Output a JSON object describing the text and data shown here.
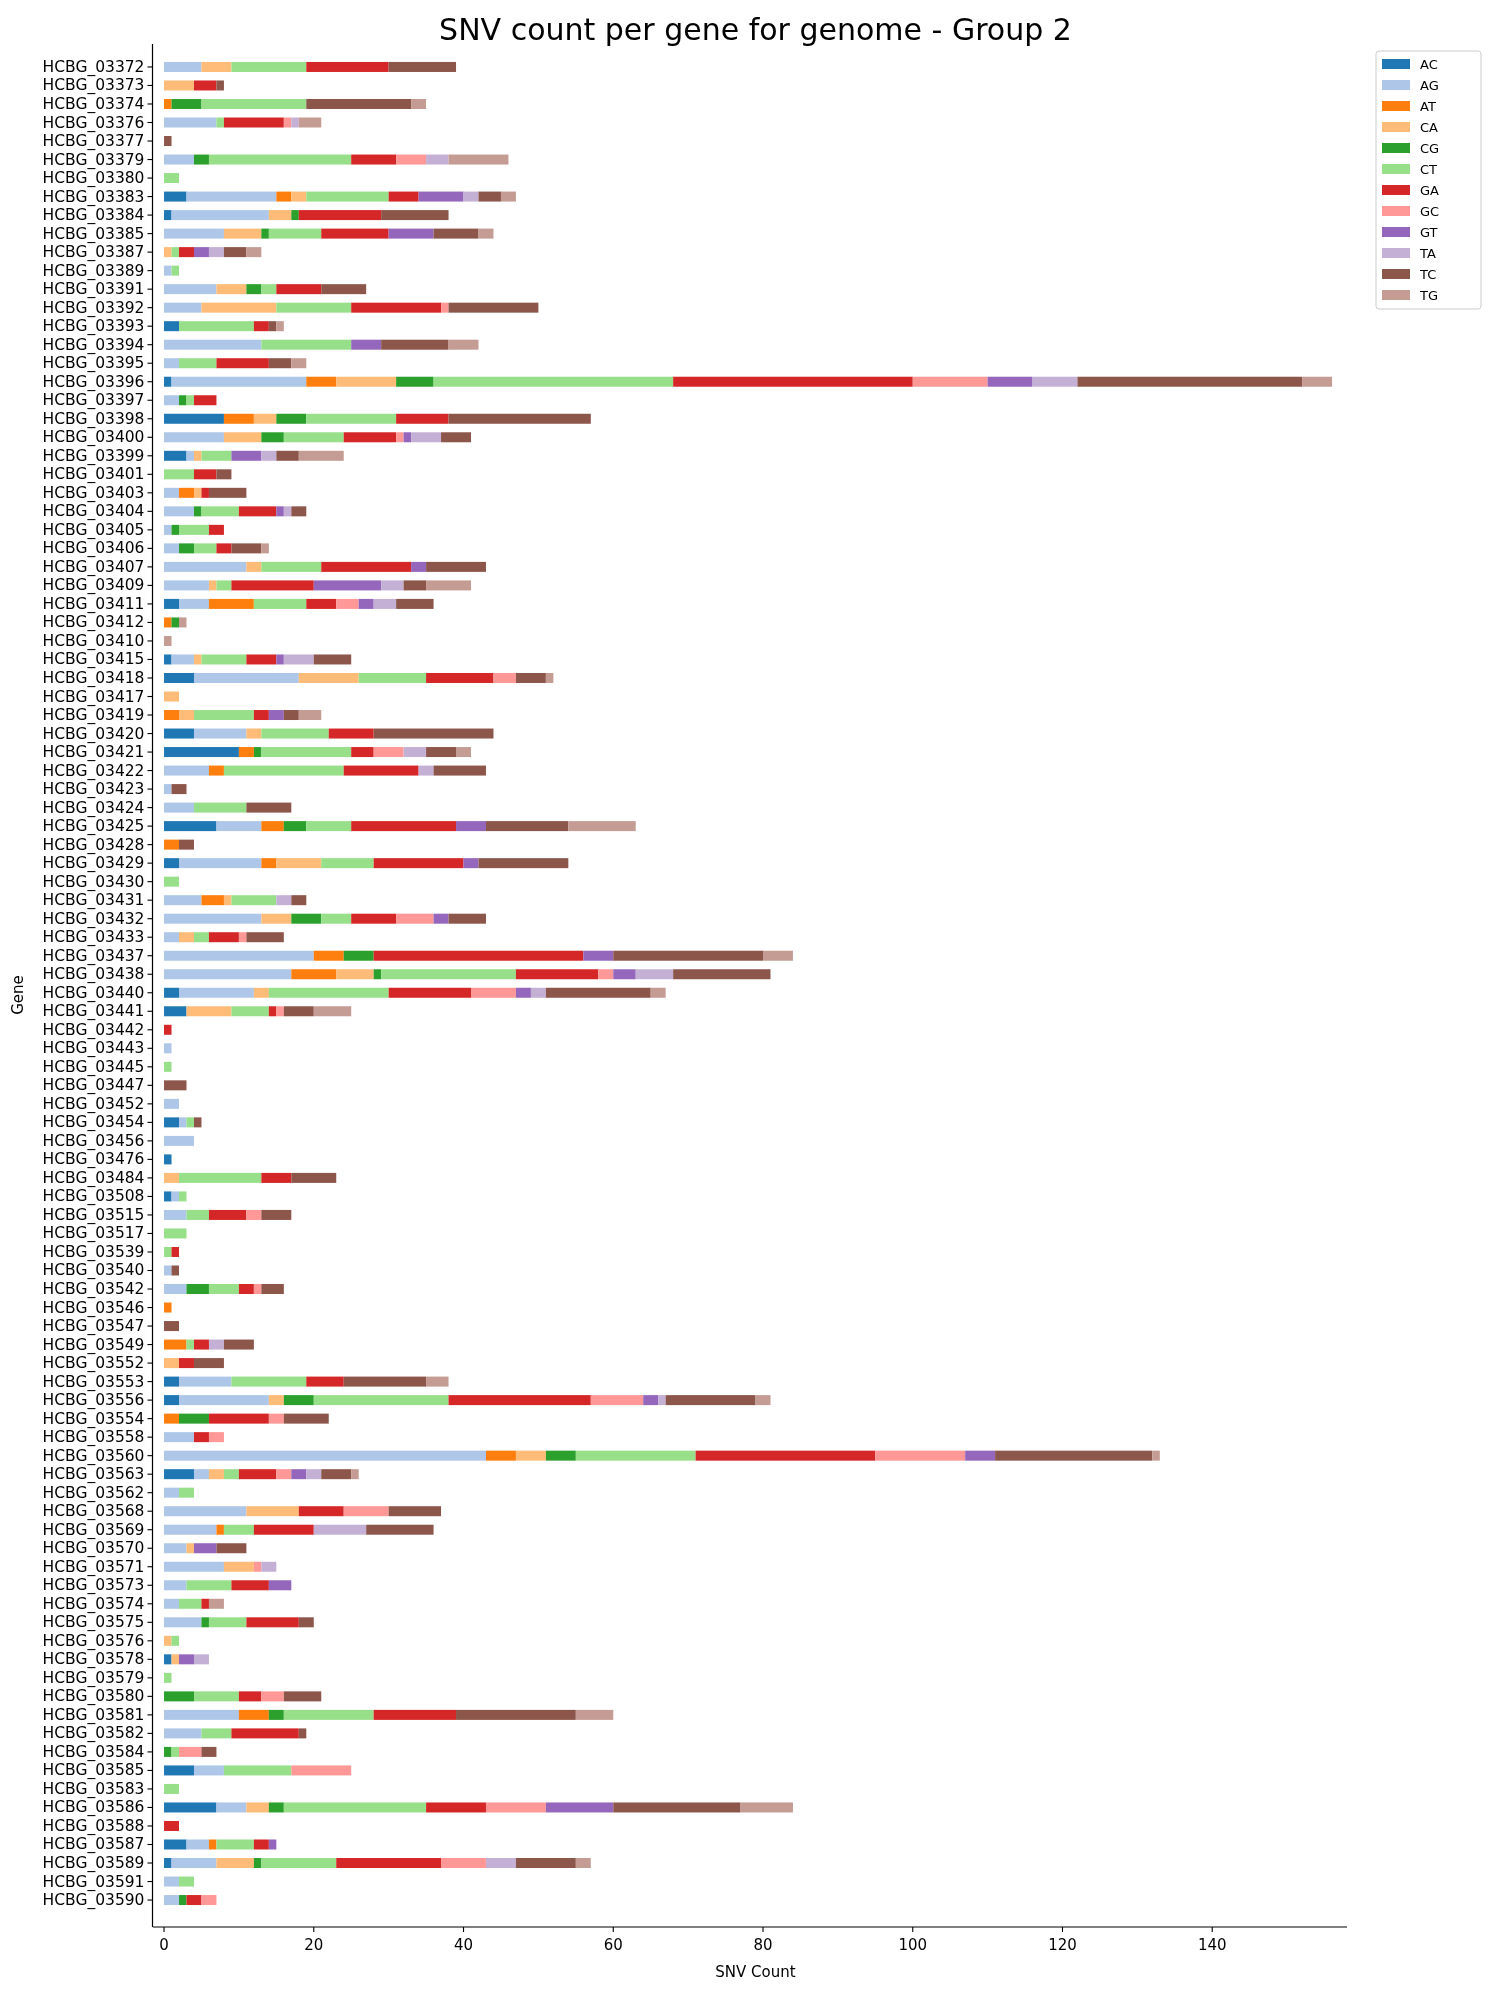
{
  "chart_data": {
    "type": "bar",
    "orientation": "horizontal",
    "stacked": true,
    "title": "SNV count per gene for genome - Group 2",
    "xlabel": "SNV Count",
    "ylabel": "Gene",
    "legend": "top right",
    "xlim": [
      -1.5,
      158
    ],
    "xticks": [
      0,
      20,
      40,
      60,
      80,
      100,
      120,
      140
    ],
    "categories": [
      "HCBG_03372",
      "HCBG_03373",
      "HCBG_03374",
      "HCBG_03376",
      "HCBG_03377",
      "HCBG_03379",
      "HCBG_03380",
      "HCBG_03383",
      "HCBG_03384",
      "HCBG_03385",
      "HCBG_03387",
      "HCBG_03389",
      "HCBG_03391",
      "HCBG_03392",
      "HCBG_03393",
      "HCBG_03394",
      "HCBG_03395",
      "HCBG_03396",
      "HCBG_03397",
      "HCBG_03398",
      "HCBG_03400",
      "HCBG_03399",
      "HCBG_03401",
      "HCBG_03403",
      "HCBG_03404",
      "HCBG_03405",
      "HCBG_03406",
      "HCBG_03407",
      "HCBG_03409",
      "HCBG_03411",
      "HCBG_03412",
      "HCBG_03410",
      "HCBG_03415",
      "HCBG_03418",
      "HCBG_03417",
      "HCBG_03419",
      "HCBG_03420",
      "HCBG_03421",
      "HCBG_03422",
      "HCBG_03423",
      "HCBG_03424",
      "HCBG_03425",
      "HCBG_03428",
      "HCBG_03429",
      "HCBG_03430",
      "HCBG_03431",
      "HCBG_03432",
      "HCBG_03433",
      "HCBG_03437",
      "HCBG_03438",
      "HCBG_03440",
      "HCBG_03441",
      "HCBG_03442",
      "HCBG_03443",
      "HCBG_03445",
      "HCBG_03447",
      "HCBG_03452",
      "HCBG_03454",
      "HCBG_03456",
      "HCBG_03476",
      "HCBG_03484",
      "HCBG_03508",
      "HCBG_03515",
      "HCBG_03517",
      "HCBG_03539",
      "HCBG_03540",
      "HCBG_03542",
      "HCBG_03546",
      "HCBG_03547",
      "HCBG_03549",
      "HCBG_03552",
      "HCBG_03553",
      "HCBG_03556",
      "HCBG_03554",
      "HCBG_03558",
      "HCBG_03560",
      "HCBG_03563",
      "HCBG_03562",
      "HCBG_03568",
      "HCBG_03569",
      "HCBG_03570",
      "HCBG_03571",
      "HCBG_03573",
      "HCBG_03574",
      "HCBG_03575",
      "HCBG_03576",
      "HCBG_03578",
      "HCBG_03579",
      "HCBG_03580",
      "HCBG_03581",
      "HCBG_03582",
      "HCBG_03584",
      "HCBG_03585",
      "HCBG_03583",
      "HCBG_03586",
      "HCBG_03588",
      "HCBG_03587",
      "HCBG_03589",
      "HCBG_03591",
      "HCBG_03590"
    ],
    "series": [
      {
        "name": "AC",
        "color": "#1f77b4",
        "values": [
          0,
          0,
          0,
          0,
          0,
          0,
          0,
          3,
          1,
          0,
          0,
          0,
          0,
          0,
          2,
          0,
          0,
          1,
          0,
          8,
          0,
          3,
          0,
          0,
          0,
          0,
          0,
          0,
          0,
          2,
          0,
          0,
          1,
          4,
          0,
          0,
          4,
          10,
          0,
          0,
          0,
          7,
          0,
          2,
          0,
          0,
          0,
          0,
          0,
          0,
          2,
          3,
          0,
          0,
          0,
          0,
          0,
          2,
          0,
          1,
          0,
          1,
          0,
          0,
          0,
          0,
          0,
          0,
          0,
          0,
          0,
          2,
          2,
          0,
          0,
          0,
          4,
          0,
          0,
          0,
          0,
          0,
          0,
          0,
          0,
          0,
          1,
          0,
          0,
          0,
          0,
          0,
          4,
          0,
          7,
          0,
          3,
          1,
          0,
          0
        ]
      },
      {
        "name": "AG",
        "color": "#aec7e8",
        "values": [
          5,
          0,
          0,
          7,
          0,
          4,
          0,
          12,
          13,
          8,
          0,
          1,
          7,
          5,
          0,
          13,
          2,
          18,
          2,
          0,
          8,
          1,
          0,
          2,
          4,
          1,
          2,
          11,
          6,
          4,
          0,
          0,
          3,
          14,
          0,
          0,
          7,
          0,
          6,
          1,
          4,
          6,
          0,
          11,
          0,
          5,
          13,
          2,
          20,
          17,
          10,
          0,
          0,
          1,
          0,
          0,
          2,
          1,
          4,
          0,
          0,
          1,
          3,
          0,
          0,
          1,
          3,
          0,
          0,
          0,
          0,
          7,
          12,
          0,
          4,
          43,
          2,
          2,
          11,
          7,
          3,
          8,
          3,
          2,
          5,
          0,
          0,
          0,
          0,
          10,
          5,
          0,
          4,
          0,
          4,
          0,
          3,
          6,
          2,
          2
        ]
      },
      {
        "name": "AT",
        "color": "#ff7f0e",
        "values": [
          0,
          0,
          1,
          0,
          0,
          0,
          0,
          2,
          0,
          0,
          0,
          0,
          0,
          0,
          0,
          0,
          0,
          4,
          0,
          4,
          0,
          0,
          0,
          2,
          0,
          0,
          0,
          0,
          0,
          6,
          1,
          0,
          0,
          0,
          0,
          2,
          0,
          2,
          2,
          0,
          0,
          3,
          2,
          2,
          0,
          3,
          0,
          0,
          4,
          6,
          0,
          0,
          0,
          0,
          0,
          0,
          0,
          0,
          0,
          0,
          0,
          0,
          0,
          0,
          0,
          0,
          0,
          1,
          0,
          3,
          0,
          0,
          0,
          2,
          0,
          4,
          0,
          0,
          0,
          1,
          0,
          0,
          0,
          0,
          0,
          0,
          0,
          0,
          0,
          4,
          0,
          0,
          0,
          0,
          0,
          0,
          1,
          0,
          0,
          0
        ]
      },
      {
        "name": "CA",
        "color": "#ffbb78",
        "values": [
          4,
          4,
          0,
          0,
          0,
          0,
          0,
          2,
          3,
          5,
          1,
          0,
          4,
          10,
          0,
          0,
          0,
          8,
          0,
          3,
          5,
          1,
          0,
          1,
          0,
          0,
          0,
          2,
          1,
          0,
          0,
          0,
          1,
          8,
          2,
          2,
          2,
          0,
          0,
          0,
          0,
          0,
          0,
          6,
          0,
          1,
          4,
          2,
          0,
          5,
          2,
          6,
          0,
          0,
          0,
          0,
          0,
          0,
          0,
          0,
          2,
          0,
          0,
          0,
          0,
          0,
          0,
          0,
          0,
          0,
          2,
          0,
          2,
          0,
          0,
          4,
          2,
          0,
          7,
          0,
          1,
          4,
          0,
          0,
          0,
          1,
          1,
          0,
          0,
          0,
          0,
          0,
          0,
          0,
          3,
          0,
          0,
          5,
          0,
          0
        ]
      },
      {
        "name": "CG",
        "color": "#2ca02c",
        "values": [
          0,
          0,
          4,
          0,
          0,
          2,
          0,
          0,
          1,
          1,
          0,
          0,
          2,
          0,
          0,
          0,
          0,
          5,
          1,
          4,
          3,
          0,
          0,
          0,
          1,
          1,
          2,
          0,
          0,
          0,
          1,
          0,
          0,
          0,
          0,
          0,
          0,
          1,
          0,
          0,
          0,
          3,
          0,
          0,
          0,
          0,
          4,
          0,
          4,
          1,
          0,
          0,
          0,
          0,
          0,
          0,
          0,
          0,
          0,
          0,
          0,
          0,
          0,
          0,
          0,
          0,
          3,
          0,
          0,
          0,
          0,
          0,
          4,
          4,
          0,
          4,
          0,
          0,
          0,
          0,
          0,
          0,
          0,
          0,
          1,
          0,
          0,
          0,
          4,
          2,
          0,
          1,
          0,
          0,
          2,
          0,
          0,
          1,
          0,
          1
        ]
      },
      {
        "name": "CT",
        "color": "#98df8a",
        "values": [
          10,
          0,
          14,
          1,
          0,
          19,
          2,
          11,
          0,
          7,
          1,
          1,
          2,
          10,
          10,
          12,
          5,
          32,
          1,
          12,
          8,
          4,
          4,
          0,
          5,
          4,
          3,
          8,
          2,
          7,
          0,
          0,
          6,
          9,
          0,
          8,
          9,
          12,
          16,
          0,
          7,
          6,
          0,
          7,
          2,
          6,
          4,
          2,
          0,
          18,
          16,
          5,
          0,
          0,
          1,
          0,
          0,
          1,
          0,
          0,
          11,
          1,
          3,
          3,
          1,
          0,
          4,
          0,
          0,
          1,
          0,
          10,
          18,
          0,
          0,
          16,
          2,
          2,
          0,
          4,
          0,
          0,
          6,
          3,
          5,
          1,
          0,
          1,
          6,
          12,
          4,
          1,
          9,
          2,
          19,
          0,
          5,
          10,
          2,
          0
        ]
      },
      {
        "name": "GA",
        "color": "#d62728",
        "values": [
          11,
          3,
          0,
          8,
          0,
          6,
          0,
          4,
          11,
          9,
          2,
          0,
          6,
          12,
          2,
          0,
          7,
          32,
          3,
          7,
          7,
          0,
          3,
          1,
          5,
          2,
          2,
          12,
          11,
          4,
          0,
          0,
          4,
          9,
          0,
          2,
          6,
          3,
          10,
          0,
          0,
          14,
          0,
          12,
          0,
          0,
          6,
          4,
          28,
          11,
          11,
          1,
          1,
          0,
          0,
          0,
          0,
          0,
          0,
          0,
          4,
          0,
          5,
          0,
          1,
          0,
          2,
          0,
          0,
          2,
          2,
          5,
          19,
          8,
          2,
          24,
          5,
          0,
          6,
          8,
          0,
          0,
          5,
          1,
          7,
          0,
          0,
          0,
          3,
          11,
          9,
          0,
          0,
          0,
          8,
          2,
          2,
          14,
          0,
          2
        ]
      },
      {
        "name": "GC",
        "color": "#ff9896",
        "values": [
          0,
          0,
          0,
          1,
          0,
          4,
          0,
          0,
          0,
          0,
          0,
          0,
          0,
          1,
          0,
          0,
          0,
          10,
          0,
          0,
          1,
          0,
          0,
          0,
          0,
          0,
          0,
          0,
          0,
          3,
          0,
          0,
          0,
          3,
          0,
          0,
          0,
          4,
          0,
          0,
          0,
          0,
          0,
          0,
          0,
          0,
          5,
          1,
          0,
          2,
          6,
          1,
          0,
          0,
          0,
          0,
          0,
          0,
          0,
          0,
          0,
          0,
          2,
          0,
          0,
          0,
          1,
          0,
          0,
          0,
          0,
          0,
          7,
          2,
          2,
          12,
          2,
          0,
          6,
          0,
          0,
          1,
          0,
          0,
          0,
          0,
          0,
          0,
          3,
          0,
          0,
          3,
          8,
          0,
          8,
          0,
          0,
          6,
          0,
          2
        ]
      },
      {
        "name": "GT",
        "color": "#9467bd",
        "values": [
          0,
          0,
          0,
          0,
          0,
          0,
          0,
          6,
          0,
          6,
          2,
          0,
          0,
          0,
          0,
          4,
          0,
          6,
          0,
          0,
          1,
          4,
          0,
          0,
          1,
          0,
          0,
          2,
          9,
          2,
          0,
          0,
          1,
          0,
          0,
          2,
          0,
          0,
          0,
          0,
          0,
          4,
          0,
          2,
          0,
          0,
          2,
          0,
          4,
          3,
          2,
          0,
          0,
          0,
          0,
          0,
          0,
          0,
          0,
          0,
          0,
          0,
          0,
          0,
          0,
          0,
          0,
          0,
          0,
          0,
          0,
          0,
          2,
          0,
          0,
          4,
          2,
          0,
          0,
          0,
          3,
          0,
          3,
          0,
          0,
          0,
          2,
          0,
          0,
          0,
          0,
          0,
          0,
          0,
          9,
          0,
          1,
          0,
          0,
          0
        ]
      },
      {
        "name": "TA",
        "color": "#c5b0d5",
        "values": [
          0,
          0,
          0,
          1,
          0,
          3,
          0,
          2,
          0,
          0,
          2,
          0,
          0,
          0,
          0,
          0,
          0,
          6,
          0,
          0,
          4,
          2,
          0,
          0,
          1,
          0,
          0,
          0,
          3,
          3,
          0,
          0,
          4,
          0,
          0,
          0,
          0,
          3,
          2,
          0,
          0,
          0,
          0,
          0,
          0,
          2,
          0,
          0,
          0,
          5,
          2,
          0,
          0,
          0,
          0,
          0,
          0,
          0,
          0,
          0,
          0,
          0,
          0,
          0,
          0,
          0,
          0,
          0,
          0,
          2,
          0,
          0,
          1,
          0,
          0,
          0,
          2,
          0,
          0,
          7,
          0,
          2,
          0,
          0,
          0,
          0,
          2,
          0,
          0,
          0,
          0,
          0,
          0,
          0,
          0,
          0,
          0,
          4,
          0,
          0
        ]
      },
      {
        "name": "TC",
        "color": "#8c564b",
        "values": [
          9,
          1,
          14,
          0,
          1,
          0,
          0,
          3,
          9,
          6,
          3,
          0,
          6,
          12,
          1,
          9,
          3,
          30,
          0,
          19,
          4,
          3,
          2,
          5,
          2,
          0,
          4,
          8,
          3,
          5,
          0,
          0,
          5,
          4,
          0,
          2,
          16,
          4,
          7,
          2,
          6,
          11,
          2,
          12,
          0,
          2,
          5,
          5,
          20,
          13,
          14,
          4,
          0,
          0,
          0,
          3,
          0,
          1,
          0,
          0,
          6,
          0,
          4,
          0,
          0,
          1,
          3,
          0,
          2,
          4,
          4,
          11,
          12,
          6,
          0,
          21,
          4,
          0,
          7,
          9,
          4,
          0,
          0,
          0,
          2,
          0,
          0,
          0,
          5,
          16,
          1,
          2,
          0,
          0,
          17,
          0,
          0,
          8,
          0,
          0
        ]
      },
      {
        "name": "TG",
        "color": "#c49c94",
        "values": [
          0,
          0,
          2,
          3,
          0,
          8,
          0,
          2,
          0,
          2,
          2,
          0,
          0,
          0,
          1,
          4,
          2,
          4,
          0,
          0,
          0,
          6,
          0,
          0,
          0,
          0,
          1,
          0,
          6,
          0,
          1,
          1,
          0,
          1,
          0,
          3,
          0,
          2,
          0,
          0,
          0,
          9,
          0,
          0,
          0,
          0,
          0,
          0,
          4,
          0,
          2,
          5,
          0,
          0,
          0,
          0,
          0,
          0,
          0,
          0,
          0,
          0,
          0,
          0,
          0,
          0,
          0,
          0,
          0,
          0,
          0,
          3,
          2,
          0,
          0,
          1,
          1,
          0,
          0,
          0,
          0,
          0,
          0,
          2,
          0,
          0,
          0,
          0,
          0,
          5,
          0,
          0,
          0,
          0,
          7,
          0,
          0,
          2,
          0,
          0
        ]
      }
    ]
  }
}
